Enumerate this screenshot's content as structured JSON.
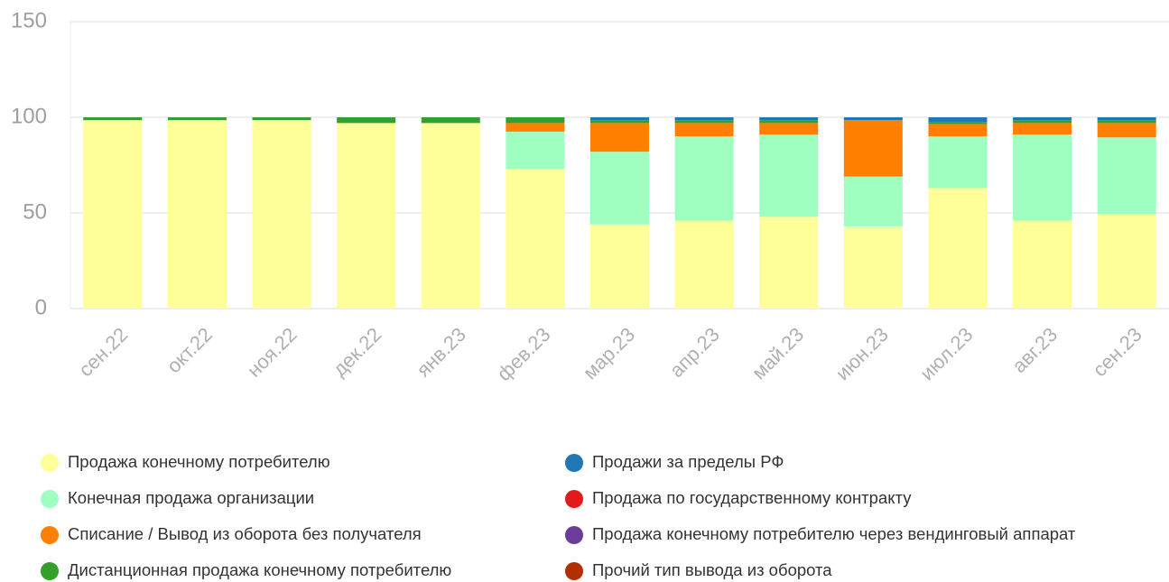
{
  "chart_data": {
    "type": "bar",
    "stacked": true,
    "categories": [
      "сен.22",
      "окт.22",
      "ноя.22",
      "дек.22",
      "янв.23",
      "фев.23",
      "мар.23",
      "апр.23",
      "май.23",
      "июн.23",
      "июл.23",
      "авг.23",
      "сен.23"
    ],
    "series": [
      {
        "name": "Продажа конечному потребителю",
        "color": "#ffff99",
        "values": [
          98.5,
          98.5,
          98.5,
          97,
          97,
          73,
          44,
          46,
          48,
          43,
          63,
          46,
          49.5
        ]
      },
      {
        "name": "Конечная продажа организации",
        "color": "#9effc1",
        "values": [
          0,
          0,
          0,
          0,
          0,
          19.5,
          38,
          44,
          43,
          26,
          27,
          45,
          40
        ]
      },
      {
        "name": "Списание / Вывод из оборота без получателя",
        "color": "#ff8000",
        "values": [
          0,
          0,
          0,
          0,
          0,
          4.5,
          15,
          7,
          6,
          29.5,
          6.5,
          6,
          7.5
        ]
      },
      {
        "name": "Дистанционная продажа конечному потребителю",
        "color": "#33a02c",
        "values": [
          1.5,
          1.5,
          1.5,
          3,
          3,
          3,
          1.5,
          1.5,
          1.5,
          0,
          1,
          1.5,
          1.5
        ]
      },
      {
        "name": "Продажи за пределы РФ",
        "color": "#1f78b4",
        "values": [
          0,
          0,
          0,
          0,
          0,
          0,
          1.5,
          1.5,
          1.5,
          1.5,
          2.5,
          1.5,
          1.5
        ]
      },
      {
        "name": "Продажа по государственному контракту",
        "color": "#e31a1c",
        "values": [
          0,
          0,
          0,
          0,
          0,
          0,
          0,
          0,
          0,
          0,
          0,
          0,
          0
        ]
      },
      {
        "name": "Продажа конечному потребителю через вендинговый аппарат",
        "color": "#6a3d9a",
        "values": [
          0,
          0,
          0,
          0,
          0,
          0,
          0,
          0,
          0,
          0,
          0,
          0,
          0
        ]
      },
      {
        "name": "Прочий тип вывода из оборота",
        "color": "#b22f00",
        "values": [
          0,
          0,
          0,
          0,
          0,
          0,
          0,
          0,
          0,
          0,
          0,
          0,
          0
        ]
      }
    ],
    "ylim": [
      0,
      150
    ],
    "yticks": [
      0,
      50,
      100,
      150
    ],
    "grid": true
  }
}
